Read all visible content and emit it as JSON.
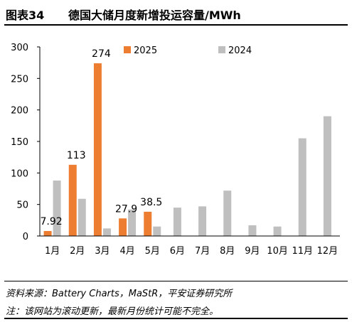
{
  "header": {
    "figure_label": "图表34",
    "title": "德国大储月度新增投运容量/MWh"
  },
  "footer": {
    "source": "资料来源：Battery Charts，MaStR，平安证券研究所",
    "note": "注：该网站为滚动更新，最新月份统计可能不完全。"
  },
  "chart_data": {
    "type": "bar",
    "title": "德国大储月度新增投运容量/MWh",
    "categories": [
      "1月",
      "2月",
      "3月",
      "4月",
      "5月",
      "6月",
      "7月",
      "8月",
      "9月",
      "10月",
      "11月",
      "12月"
    ],
    "series": [
      {
        "name": "2025",
        "color": "#ED7D31",
        "values": [
          7.92,
          113,
          274,
          27.9,
          38.5,
          null,
          null,
          null,
          null,
          null,
          null,
          null
        ]
      },
      {
        "name": "2024",
        "color": "#BFBFBF",
        "values": [
          88,
          59,
          12,
          42,
          15,
          45,
          47,
          72,
          17,
          15,
          155,
          190
        ]
      }
    ],
    "data_labels": [
      "7.92",
      "113",
      "274",
      "27.9",
      "38.5"
    ],
    "y_ticks": [
      "0",
      "50",
      "100",
      "150",
      "200",
      "250",
      "300"
    ],
    "ylim": [
      0,
      300
    ],
    "grid": false,
    "legend_position": "top"
  }
}
